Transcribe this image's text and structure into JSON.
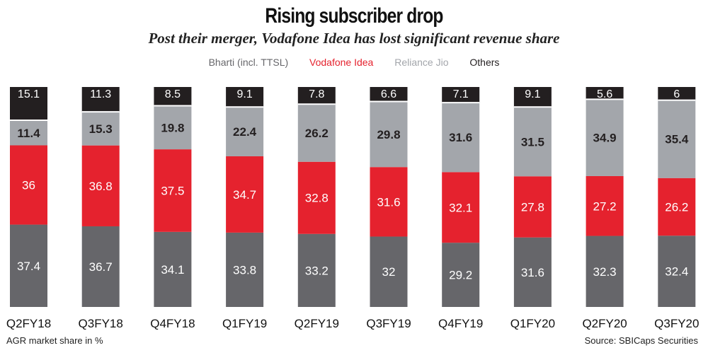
{
  "header": {
    "title": "Rising subscriber drop",
    "subtitle": "Post their merger, Vodafone Idea has lost significant revenue share"
  },
  "footer": {
    "note": "AGR market share in %",
    "source": "Source: SBICaps Securities"
  },
  "colors": {
    "bharti": "#66666a",
    "vodafone": "#e5222e",
    "jio": "#a3a6ab",
    "others": "#231f20"
  },
  "chart_data": {
    "type": "bar",
    "stacked": true,
    "categories": [
      "Q2FY18",
      "Q3FY18",
      "Q4FY18",
      "Q1FY19",
      "Q2FY19",
      "Q3FY19",
      "Q4FY19",
      "Q1FY20",
      "Q2FY20",
      "Q3FY20"
    ],
    "series": [
      {
        "name": "Bharti (incl. TTSL)",
        "values": [
          37.4,
          36.7,
          34.1,
          33.8,
          33.2,
          32,
          29.2,
          31.6,
          32.3,
          32.4
        ]
      },
      {
        "name": "Vodafone Idea",
        "values": [
          36,
          36.8,
          37.5,
          34.7,
          32.8,
          31.6,
          32.1,
          27.8,
          27.2,
          26.2
        ]
      },
      {
        "name": "Reliance Jio",
        "values": [
          11.4,
          15.3,
          19.8,
          22.4,
          26.2,
          29.8,
          31.6,
          31.5,
          34.9,
          35.4
        ]
      },
      {
        "name": "Others",
        "values": [
          15.1,
          11.3,
          8.5,
          9.1,
          7.8,
          6.6,
          7.1,
          9.1,
          5.6,
          6
        ]
      }
    ],
    "legend_position": "top-center",
    "data_labels": true,
    "ylim": [
      0,
      100
    ]
  }
}
